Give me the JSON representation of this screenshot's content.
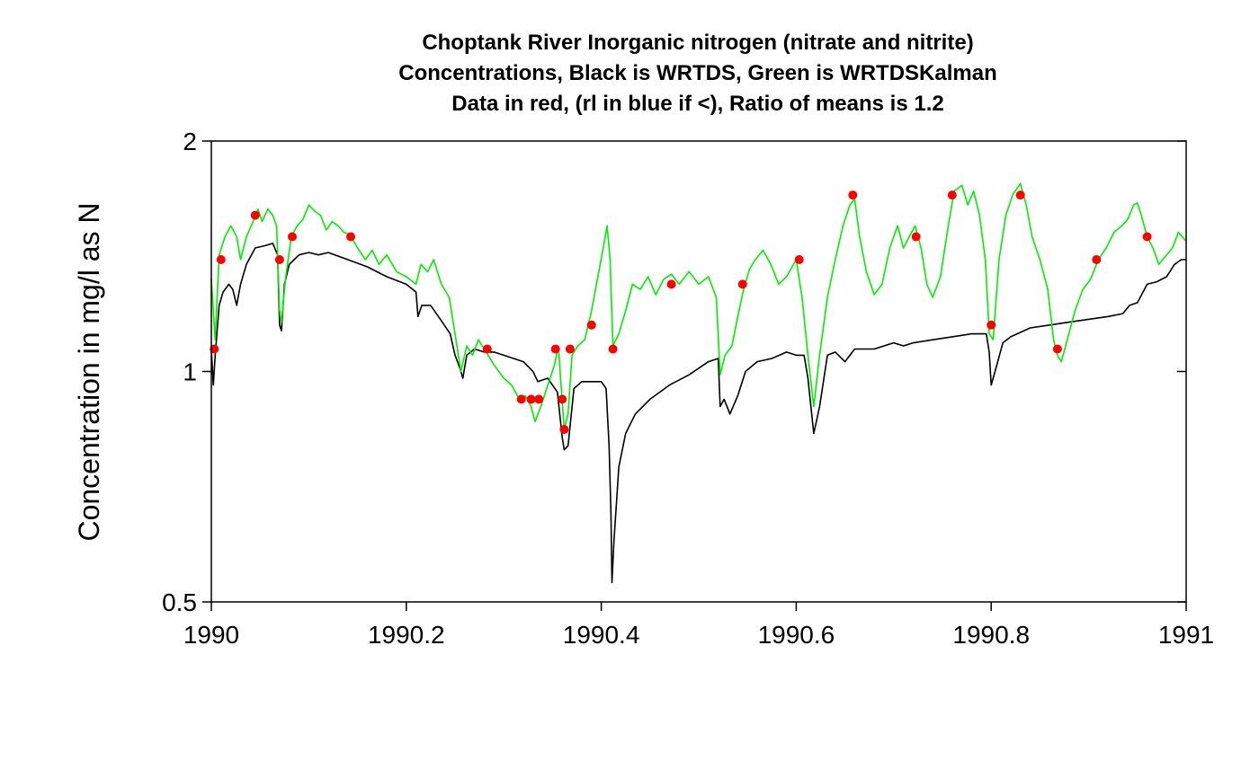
{
  "chart_data": {
    "type": "line",
    "title_lines": [
      "Choptank River Inorganic nitrogen (nitrate and nitrite)",
      "Concentrations, Black is WRTDS, Green is WRTDSKalman",
      "Data in red, (rl in blue if <), Ratio of means is 1.2"
    ],
    "xlabel": "",
    "ylabel": "Concentration in mg/l as N",
    "y_scale": "log",
    "xlim": [
      1990,
      1991
    ],
    "ylim": [
      0.5,
      2
    ],
    "x_ticks": [
      1990,
      1990.2,
      1990.4,
      1990.6,
      1990.8,
      1991
    ],
    "x_tick_labels": [
      "1990",
      "1990.2",
      "1990.4",
      "1990.6",
      "1990.8",
      "1991"
    ],
    "y_ticks": [
      0.5,
      1,
      2
    ],
    "y_tick_labels": [
      "0.5",
      "1",
      "2"
    ],
    "grid": false,
    "legend": "none",
    "colors": {
      "wrtds": "#000000",
      "kalman": "#00ee00",
      "samples": "#ff0000"
    },
    "series": [
      {
        "color": "#000000",
        "points": [
          [
            1990.0,
            1.07
          ],
          [
            1990.002,
            0.96
          ],
          [
            1990.004,
            1.05
          ],
          [
            1990.008,
            1.22
          ],
          [
            1990.012,
            1.27
          ],
          [
            1990.018,
            1.3
          ],
          [
            1990.022,
            1.28
          ],
          [
            1990.026,
            1.22
          ],
          [
            1990.03,
            1.3
          ],
          [
            1990.036,
            1.38
          ],
          [
            1990.045,
            1.45
          ],
          [
            1990.055,
            1.46
          ],
          [
            1990.063,
            1.47
          ],
          [
            1990.068,
            1.42
          ],
          [
            1990.07,
            1.15
          ],
          [
            1990.072,
            1.13
          ],
          [
            1990.075,
            1.3
          ],
          [
            1990.08,
            1.38
          ],
          [
            1990.085,
            1.4
          ],
          [
            1990.09,
            1.42
          ],
          [
            1990.1,
            1.43
          ],
          [
            1990.11,
            1.42
          ],
          [
            1990.12,
            1.43
          ],
          [
            1990.14,
            1.4
          ],
          [
            1990.16,
            1.37
          ],
          [
            1990.18,
            1.33
          ],
          [
            1990.2,
            1.3
          ],
          [
            1990.21,
            1.27
          ],
          [
            1990.212,
            1.18
          ],
          [
            1990.216,
            1.22
          ],
          [
            1990.225,
            1.22
          ],
          [
            1990.235,
            1.17
          ],
          [
            1990.245,
            1.12
          ],
          [
            1990.25,
            1.05
          ],
          [
            1990.255,
            1.01
          ],
          [
            1990.258,
            0.98
          ],
          [
            1990.262,
            1.05
          ],
          [
            1990.27,
            1.07
          ],
          [
            1990.28,
            1.06
          ],
          [
            1990.29,
            1.06
          ],
          [
            1990.3,
            1.05
          ],
          [
            1990.31,
            1.04
          ],
          [
            1990.32,
            1.03
          ],
          [
            1990.33,
            1.0
          ],
          [
            1990.335,
            0.97
          ],
          [
            1990.345,
            0.98
          ],
          [
            1990.355,
            0.94
          ],
          [
            1990.36,
            0.82
          ],
          [
            1990.362,
            0.79
          ],
          [
            1990.366,
            0.8
          ],
          [
            1990.372,
            0.95
          ],
          [
            1990.38,
            0.97
          ],
          [
            1990.39,
            0.97
          ],
          [
            1990.4,
            0.97
          ],
          [
            1990.405,
            0.95
          ],
          [
            1990.408,
            0.8
          ],
          [
            1990.41,
            0.65
          ],
          [
            1990.411,
            0.53
          ],
          [
            1990.413,
            0.6
          ],
          [
            1990.418,
            0.75
          ],
          [
            1990.425,
            0.83
          ],
          [
            1990.435,
            0.88
          ],
          [
            1990.45,
            0.92
          ],
          [
            1990.47,
            0.96
          ],
          [
            1990.49,
            0.99
          ],
          [
            1990.51,
            1.03
          ],
          [
            1990.52,
            1.04
          ],
          [
            1990.522,
            0.9
          ],
          [
            1990.526,
            0.92
          ],
          [
            1990.532,
            0.88
          ],
          [
            1990.54,
            0.93
          ],
          [
            1990.548,
            1.0
          ],
          [
            1990.56,
            1.03
          ],
          [
            1990.575,
            1.04
          ],
          [
            1990.59,
            1.06
          ],
          [
            1990.6,
            1.05
          ],
          [
            1990.608,
            1.05
          ],
          [
            1990.612,
            0.98
          ],
          [
            1990.618,
            0.83
          ],
          [
            1990.624,
            0.9
          ],
          [
            1990.632,
            1.05
          ],
          [
            1990.64,
            1.06
          ],
          [
            1990.65,
            1.03
          ],
          [
            1990.66,
            1.07
          ],
          [
            1990.68,
            1.07
          ],
          [
            1990.7,
            1.09
          ],
          [
            1990.71,
            1.08
          ],
          [
            1990.72,
            1.09
          ],
          [
            1990.74,
            1.1
          ],
          [
            1990.76,
            1.11
          ],
          [
            1990.78,
            1.12
          ],
          [
            1990.795,
            1.12
          ],
          [
            1990.798,
            1.06
          ],
          [
            1990.8,
            0.96
          ],
          [
            1990.804,
            1.0
          ],
          [
            1990.812,
            1.09
          ],
          [
            1990.82,
            1.11
          ],
          [
            1990.84,
            1.14
          ],
          [
            1990.86,
            1.15
          ],
          [
            1990.88,
            1.16
          ],
          [
            1990.9,
            1.17
          ],
          [
            1990.92,
            1.18
          ],
          [
            1990.935,
            1.19
          ],
          [
            1990.942,
            1.22
          ],
          [
            1990.95,
            1.23
          ],
          [
            1990.96,
            1.3
          ],
          [
            1990.97,
            1.31
          ],
          [
            1990.98,
            1.33
          ],
          [
            1990.988,
            1.38
          ],
          [
            1990.995,
            1.4
          ],
          [
            1991.0,
            1.4
          ]
        ]
      },
      {
        "color": "#00ee00",
        "points": [
          [
            1990.0,
            1.32
          ],
          [
            1990.004,
            1.1
          ],
          [
            1990.008,
            1.42
          ],
          [
            1990.014,
            1.5
          ],
          [
            1990.02,
            1.55
          ],
          [
            1990.026,
            1.5
          ],
          [
            1990.03,
            1.4
          ],
          [
            1990.036,
            1.5
          ],
          [
            1990.042,
            1.56
          ],
          [
            1990.048,
            1.63
          ],
          [
            1990.052,
            1.57
          ],
          [
            1990.058,
            1.63
          ],
          [
            1990.063,
            1.6
          ],
          [
            1990.067,
            1.55
          ],
          [
            1990.07,
            1.2
          ],
          [
            1990.072,
            1.16
          ],
          [
            1990.076,
            1.32
          ],
          [
            1990.082,
            1.5
          ],
          [
            1990.088,
            1.55
          ],
          [
            1990.094,
            1.58
          ],
          [
            1990.1,
            1.65
          ],
          [
            1990.106,
            1.62
          ],
          [
            1990.112,
            1.6
          ],
          [
            1990.118,
            1.53
          ],
          [
            1990.124,
            1.57
          ],
          [
            1990.13,
            1.55
          ],
          [
            1990.136,
            1.52
          ],
          [
            1990.142,
            1.51
          ],
          [
            1990.15,
            1.45
          ],
          [
            1990.158,
            1.4
          ],
          [
            1990.165,
            1.44
          ],
          [
            1990.172,
            1.38
          ],
          [
            1990.18,
            1.42
          ],
          [
            1990.19,
            1.35
          ],
          [
            1990.2,
            1.33
          ],
          [
            1990.21,
            1.3
          ],
          [
            1990.215,
            1.38
          ],
          [
            1990.222,
            1.35
          ],
          [
            1990.228,
            1.4
          ],
          [
            1990.236,
            1.3
          ],
          [
            1990.244,
            1.25
          ],
          [
            1990.25,
            1.12
          ],
          [
            1990.256,
            1.0
          ],
          [
            1990.262,
            1.08
          ],
          [
            1990.268,
            1.05
          ],
          [
            1990.274,
            1.1
          ],
          [
            1990.282,
            1.06
          ],
          [
            1990.29,
            1.02
          ],
          [
            1990.3,
            0.98
          ],
          [
            1990.308,
            0.96
          ],
          [
            1990.316,
            0.92
          ],
          [
            1990.322,
            0.93
          ],
          [
            1990.328,
            0.9
          ],
          [
            1990.332,
            0.86
          ],
          [
            1990.338,
            0.9
          ],
          [
            1990.344,
            0.95
          ],
          [
            1990.352,
            1.02
          ],
          [
            1990.356,
            1.08
          ],
          [
            1990.359,
            0.95
          ],
          [
            1990.362,
            0.84
          ],
          [
            1990.366,
            0.88
          ],
          [
            1990.37,
            1.05
          ],
          [
            1990.376,
            1.08
          ],
          [
            1990.383,
            1.1
          ],
          [
            1990.39,
            1.2
          ],
          [
            1990.396,
            1.32
          ],
          [
            1990.402,
            1.45
          ],
          [
            1990.406,
            1.55
          ],
          [
            1990.409,
            1.4
          ],
          [
            1990.412,
            1.08
          ],
          [
            1990.418,
            1.12
          ],
          [
            1990.425,
            1.2
          ],
          [
            1990.432,
            1.3
          ],
          [
            1990.44,
            1.28
          ],
          [
            1990.448,
            1.33
          ],
          [
            1990.456,
            1.26
          ],
          [
            1990.464,
            1.32
          ],
          [
            1990.472,
            1.34
          ],
          [
            1990.48,
            1.3
          ],
          [
            1990.49,
            1.35
          ],
          [
            1990.5,
            1.3
          ],
          [
            1990.51,
            1.33
          ],
          [
            1990.518,
            1.25
          ],
          [
            1990.522,
            0.99
          ],
          [
            1990.527,
            1.05
          ],
          [
            1990.534,
            1.08
          ],
          [
            1990.54,
            1.18
          ],
          [
            1990.546,
            1.28
          ],
          [
            1990.552,
            1.36
          ],
          [
            1990.558,
            1.4
          ],
          [
            1990.566,
            1.44
          ],
          [
            1990.574,
            1.38
          ],
          [
            1990.582,
            1.3
          ],
          [
            1990.59,
            1.33
          ],
          [
            1990.6,
            1.4
          ],
          [
            1990.606,
            1.25
          ],
          [
            1990.612,
            1.05
          ],
          [
            1990.618,
            0.9
          ],
          [
            1990.624,
            1.05
          ],
          [
            1990.632,
            1.25
          ],
          [
            1990.64,
            1.4
          ],
          [
            1990.648,
            1.55
          ],
          [
            1990.655,
            1.65
          ],
          [
            1990.66,
            1.68
          ],
          [
            1990.665,
            1.5
          ],
          [
            1990.672,
            1.35
          ],
          [
            1990.68,
            1.26
          ],
          [
            1990.688,
            1.3
          ],
          [
            1990.696,
            1.45
          ],
          [
            1990.704,
            1.55
          ],
          [
            1990.71,
            1.45
          ],
          [
            1990.716,
            1.5
          ],
          [
            1990.722,
            1.55
          ],
          [
            1990.728,
            1.45
          ],
          [
            1990.734,
            1.3
          ],
          [
            1990.74,
            1.25
          ],
          [
            1990.748,
            1.33
          ],
          [
            1990.756,
            1.55
          ],
          [
            1990.762,
            1.72
          ],
          [
            1990.77,
            1.75
          ],
          [
            1990.776,
            1.65
          ],
          [
            1990.782,
            1.72
          ],
          [
            1990.788,
            1.6
          ],
          [
            1990.794,
            1.4
          ],
          [
            1990.798,
            1.12
          ],
          [
            1990.802,
            1.1
          ],
          [
            1990.808,
            1.4
          ],
          [
            1990.815,
            1.6
          ],
          [
            1990.822,
            1.7
          ],
          [
            1990.83,
            1.76
          ],
          [
            1990.836,
            1.65
          ],
          [
            1990.842,
            1.5
          ],
          [
            1990.85,
            1.4
          ],
          [
            1990.858,
            1.28
          ],
          [
            1990.864,
            1.1
          ],
          [
            1990.868,
            1.05
          ],
          [
            1990.872,
            1.03
          ],
          [
            1990.878,
            1.1
          ],
          [
            1990.886,
            1.2
          ],
          [
            1990.894,
            1.28
          ],
          [
            1990.902,
            1.32
          ],
          [
            1990.91,
            1.4
          ],
          [
            1990.918,
            1.45
          ],
          [
            1990.926,
            1.52
          ],
          [
            1990.934,
            1.55
          ],
          [
            1990.94,
            1.58
          ],
          [
            1990.946,
            1.65
          ],
          [
            1990.95,
            1.66
          ],
          [
            1990.954,
            1.6
          ],
          [
            1990.96,
            1.5
          ],
          [
            1990.966,
            1.45
          ],
          [
            1990.972,
            1.38
          ],
          [
            1990.98,
            1.42
          ],
          [
            1990.986,
            1.45
          ],
          [
            1990.992,
            1.52
          ],
          [
            1991.0,
            1.48
          ]
        ]
      }
    ],
    "samples": [
      [
        1990.003,
        1.07
      ],
      [
        1990.01,
        1.4
      ],
      [
        1990.045,
        1.6
      ],
      [
        1990.07,
        1.4
      ],
      [
        1990.083,
        1.5
      ],
      [
        1990.143,
        1.5
      ],
      [
        1990.283,
        1.07
      ],
      [
        1990.318,
        0.92
      ],
      [
        1990.328,
        0.92
      ],
      [
        1990.336,
        0.92
      ],
      [
        1990.353,
        1.07
      ],
      [
        1990.36,
        0.92
      ],
      [
        1990.362,
        0.84
      ],
      [
        1990.368,
        1.07
      ],
      [
        1990.39,
        1.15
      ],
      [
        1990.412,
        1.07
      ],
      [
        1990.472,
        1.3
      ],
      [
        1990.545,
        1.3
      ],
      [
        1990.603,
        1.4
      ],
      [
        1990.658,
        1.7
      ],
      [
        1990.723,
        1.5
      ],
      [
        1990.76,
        1.7
      ],
      [
        1990.8,
        1.15
      ],
      [
        1990.83,
        1.7
      ],
      [
        1990.868,
        1.07
      ],
      [
        1990.908,
        1.4
      ],
      [
        1990.96,
        1.5
      ]
    ]
  }
}
